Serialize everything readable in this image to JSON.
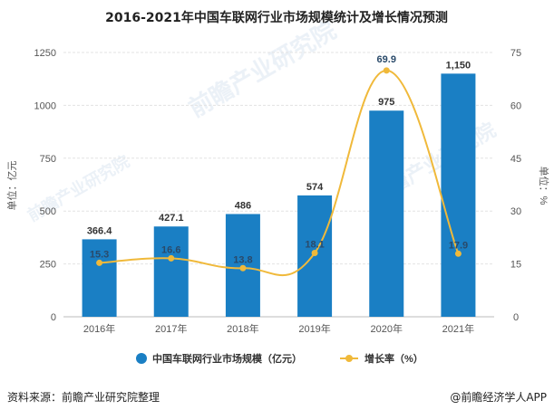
{
  "chart_data": {
    "type": "bar",
    "title": "2016-2021年中国车联网行业市场规模统计及增长情况预测",
    "categories": [
      "2016年",
      "2017年",
      "2018年",
      "2019年",
      "2020年",
      "2021年"
    ],
    "series": [
      {
        "name": "中国车联网行业市场规模（亿元）",
        "type": "bar",
        "axis": "left",
        "color": "#1a7fc4",
        "values": [
          366.4,
          427.1,
          486,
          574,
          975,
          1150
        ],
        "labels": [
          "366.4",
          "427.1",
          "486",
          "574",
          "975",
          "1,150"
        ]
      },
      {
        "name": "增长率（%）",
        "type": "line",
        "axis": "right",
        "color": "#f0b93a",
        "values": [
          15.3,
          16.6,
          13.8,
          18.1,
          69.9,
          17.9
        ],
        "labels": [
          "15.3",
          "16.6",
          "13.8",
          "18.1",
          "69.9",
          "17.9"
        ]
      }
    ],
    "ylabel": "单位：亿元",
    "ylabel_right": "单位：%",
    "ylim": [
      0,
      1250
    ],
    "ylim_right": [
      0,
      75
    ],
    "yticks": [
      "0",
      "250",
      "500",
      "750",
      "1000",
      "1250"
    ],
    "yticks_right": [
      "0",
      "15",
      "30",
      "45",
      "60",
      "75"
    ],
    "legend_position": "bottom"
  },
  "watermark": "前瞻产业研究院",
  "footer": {
    "source": "资料来源：前瞻产业研究院整理",
    "credit": "@前瞻经济学人APP"
  }
}
